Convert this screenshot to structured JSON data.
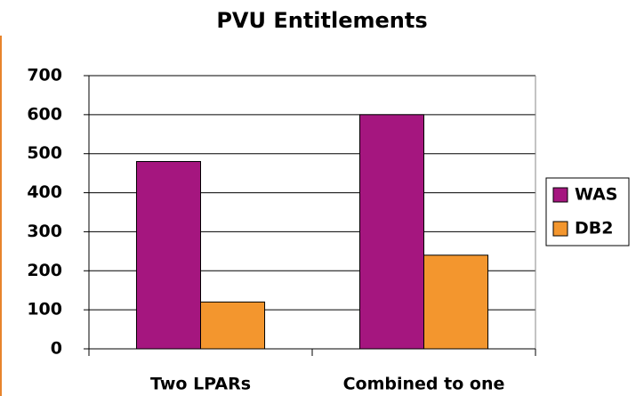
{
  "chart_data": {
    "type": "bar",
    "title": "PVU Entitlements",
    "categories": [
      "Two LPARs",
      "Combined to one"
    ],
    "series": [
      {
        "name": "WAS",
        "color": "#a5167f",
        "values": [
          480,
          600
        ]
      },
      {
        "name": "DB2",
        "color": "#f3962e",
        "values": [
          120,
          240
        ]
      }
    ],
    "ylim": [
      0,
      700
    ],
    "yticks": [
      0,
      100,
      200,
      300,
      400,
      500,
      600,
      700
    ],
    "grid": true,
    "legend": "right"
  }
}
